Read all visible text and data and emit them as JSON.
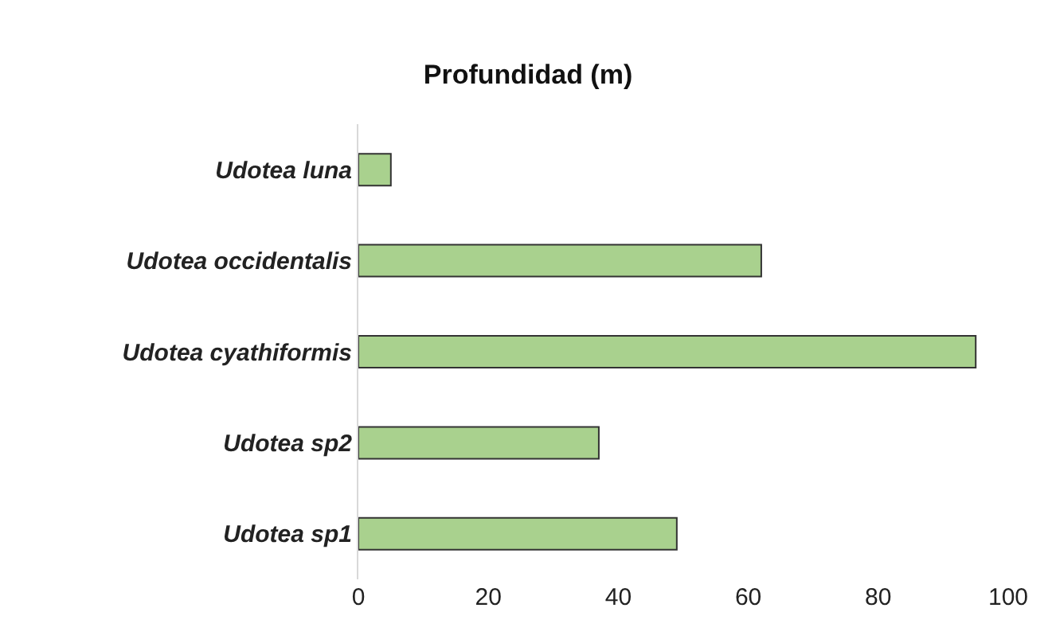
{
  "chart_data": {
    "type": "bar",
    "orientation": "horizontal",
    "title": "Profundidad (m)",
    "categories": [
      "Udotea luna",
      "Udotea occidentalis",
      "Udotea cyathiformis",
      "Udotea sp2",
      "Udotea sp1"
    ],
    "values": [
      5,
      62,
      95,
      37,
      49
    ],
    "color": "#a9d18e",
    "xlim": [
      0,
      100
    ],
    "xticks": [
      0,
      20,
      40,
      60,
      80,
      100
    ],
    "grid": false
  }
}
